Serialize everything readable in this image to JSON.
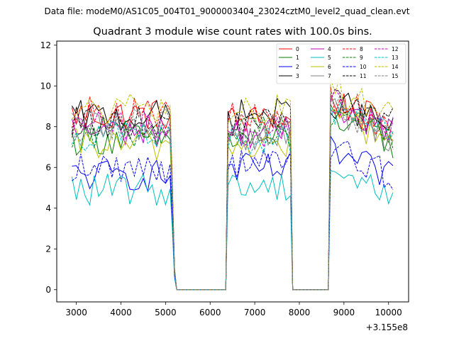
{
  "chart_data": {
    "type": "line",
    "suptitle": "Data file: modeM0/AS1C05_004T01_9000003404_23024cztM0_level2_quad_clean.evt",
    "title": "Quadrant 3 module wise count rates with 100.0s bins.",
    "xlabel": "",
    "ylabel": "",
    "x_offset_label": "+3.155e8",
    "xlim": [
      2560,
      10450
    ],
    "ylim": [
      -0.6,
      12.2
    ],
    "x_ticks": [
      3000,
      4000,
      5000,
      6000,
      7000,
      8000,
      9000,
      10000
    ],
    "y_ticks": [
      0,
      2,
      4,
      6,
      8,
      10,
      12
    ],
    "legend_position": "top-right",
    "segments": [
      {
        "start": 2900,
        "end": 5100,
        "post": [
          5150,
          5200,
          5250
        ],
        "post_factor": [
          0.62,
          0.12,
          0.0
        ]
      },
      {
        "start": 6400,
        "end": 7800,
        "pre": [
          6350
        ],
        "post": [
          7850
        ],
        "post_factor": [
          0.0
        ]
      },
      {
        "start": 8700,
        "end": 10100,
        "pre": [
          8650
        ]
      }
    ],
    "zero_bins": [
      [
        5300,
        6350
      ],
      [
        7900,
        8650
      ]
    ],
    "series": [
      {
        "name": "0",
        "color": "#ff0000",
        "dash": "solid",
        "levels": [
          8.6,
          8.3,
          9.3
        ]
      },
      {
        "name": "1",
        "color": "#008000",
        "dash": "solid",
        "levels": [
          7.4,
          7.4,
          8.6
        ]
      },
      {
        "name": "2",
        "color": "#0000ff",
        "dash": "solid",
        "levels": [
          5.6,
          5.9,
          6.8
        ]
      },
      {
        "name": "3",
        "color": "#000000",
        "dash": "solid",
        "levels": [
          8.5,
          8.6,
          9.3
        ]
      },
      {
        "name": "4",
        "color": "#bf00bf",
        "dash": "solid",
        "levels": [
          7.8,
          7.7,
          9.2
        ]
      },
      {
        "name": "5",
        "color": "#00bfbf",
        "dash": "solid",
        "levels": [
          4.9,
          5.1,
          6.0
        ]
      },
      {
        "name": "6",
        "color": "#bfbf00",
        "dash": "solid",
        "levels": [
          7.1,
          7.1,
          8.7
        ]
      },
      {
        "name": "7",
        "color": "#808080",
        "dash": "solid",
        "levels": [
          7.9,
          7.6,
          8.9
        ]
      },
      {
        "name": "8",
        "color": "#ff0000",
        "dash": "dashed",
        "levels": [
          8.7,
          8.4,
          9.4
        ]
      },
      {
        "name": "9",
        "color": "#008000",
        "dash": "dashed",
        "levels": [
          7.7,
          7.9,
          8.8
        ]
      },
      {
        "name": "10",
        "color": "#0000ff",
        "dash": "dashed",
        "levels": [
          6.0,
          6.2,
          7.0
        ]
      },
      {
        "name": "11",
        "color": "#000000",
        "dash": "dashed",
        "levels": [
          8.2,
          8.1,
          9.6
        ]
      },
      {
        "name": "12",
        "color": "#bf00bf",
        "dash": "dashed",
        "levels": [
          8.0,
          7.8,
          9.3
        ]
      },
      {
        "name": "13",
        "color": "#00bfbf",
        "dash": "dashed",
        "levels": [
          7.6,
          7.4,
          8.8
        ]
      },
      {
        "name": "14",
        "color": "#bfbf00",
        "dash": "dashed",
        "levels": [
          8.8,
          8.8,
          10.0
        ]
      },
      {
        "name": "15",
        "color": "#808080",
        "dash": "dashed",
        "levels": [
          8.1,
          7.8,
          9.0
        ]
      }
    ]
  }
}
